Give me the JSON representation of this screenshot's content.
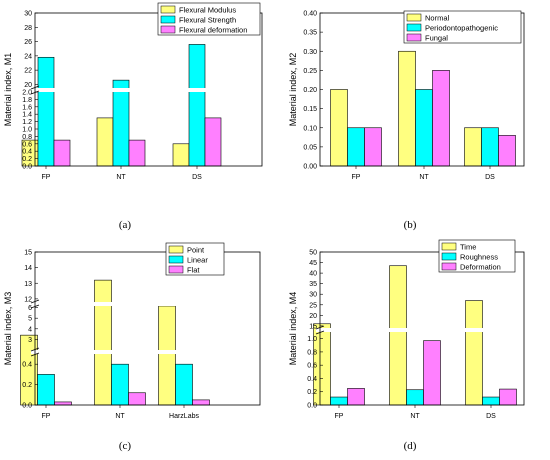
{
  "colors": {
    "yellow": "#ffff80",
    "cyan": "#00ffff",
    "magenta": "#ff80ff"
  },
  "chart_data": [
    {
      "type": "bar",
      "panel_label": "(a)",
      "ylabel": "Material index, M1",
      "categories": [
        "FP",
        "NT",
        "DS"
      ],
      "series": [
        {
          "name": "Flexural Modulus",
          "values": [
            0.7,
            1.3,
            0.6
          ]
        },
        {
          "name": "Flexural Strength",
          "values": [
            23.8,
            20.6,
            25.6
          ]
        },
        {
          "name": "Flexural deformation",
          "values": [
            0.7,
            0.7,
            1.3
          ]
        }
      ],
      "axis_break": {
        "lower_range": [
          0,
          2.0
        ],
        "upper_range": [
          19.5,
          30
        ]
      },
      "lower_ticks": [
        "0.0",
        "0.2",
        "0.4",
        "0.6",
        "0.8",
        "1.0",
        "1.2",
        "1.4",
        "1.6",
        "1.8",
        "2.0"
      ],
      "upper_ticks": [
        "20",
        "22",
        "24",
        "26",
        "28",
        "30"
      ],
      "legend_position": "top-right"
    },
    {
      "type": "bar",
      "panel_label": "(b)",
      "ylabel": "Material index, M2",
      "categories": [
        "FP",
        "NT",
        "DS"
      ],
      "series": [
        {
          "name": "Normal",
          "values": [
            0.2,
            0.3,
            0.1
          ]
        },
        {
          "name": "Periodontopathogenic",
          "values": [
            0.1,
            0.2,
            0.1
          ]
        },
        {
          "name": "Fungal",
          "values": [
            0.1,
            0.25,
            0.08
          ]
        }
      ],
      "ylim": [
        0,
        0.4
      ],
      "ticks": [
        "0.00",
        "0.05",
        "0.10",
        "0.15",
        "0.20",
        "0.25",
        "0.30",
        "0.35",
        "0.40"
      ],
      "legend_position": "top-right"
    },
    {
      "type": "bar",
      "panel_label": "(c)",
      "ylabel": "Material index, M3",
      "categories": [
        "FP",
        "NT",
        "HarzLabs"
      ],
      "series": [
        {
          "name": "Point",
          "values": [
            3.4,
            13.2,
            6.8
          ]
        },
        {
          "name": "Linear",
          "values": [
            0.3,
            0.4,
            0.4
          ]
        },
        {
          "name": "Flat",
          "values": [
            0.03,
            0.12,
            0.05
          ]
        }
      ],
      "axis_break": {
        "lower_range": [
          0,
          0.5
        ],
        "upper_range": [
          2,
          15
        ]
      },
      "lower_ticks": [
        "0.0",
        "0.2",
        "0.4"
      ],
      "upper_ticks": [
        "3",
        "4",
        "5",
        "6",
        "12",
        "13",
        "14",
        "15"
      ],
      "legend_position": "top-right"
    },
    {
      "type": "bar",
      "panel_label": "(d)",
      "ylabel": "Material index, M4",
      "categories": [
        "FP",
        "NT",
        "DS"
      ],
      "series": [
        {
          "name": "Time",
          "values": [
            16,
            43.5,
            27
          ]
        },
        {
          "name": "Roughness",
          "values": [
            0.12,
            0.23,
            0.12
          ]
        },
        {
          "name": "Deformation",
          "values": [
            0.25,
            0.97,
            0.24
          ]
        }
      ],
      "axis_break": {
        "lower_range": [
          0,
          1.1
        ],
        "upper_range": [
          14,
          50
        ]
      },
      "lower_ticks": [
        "0.0",
        "0.2",
        "0.4",
        "0.6",
        "0.8",
        "1.0"
      ],
      "upper_ticks": [
        "15",
        "20",
        "25",
        "30",
        "35",
        "40",
        "45",
        "50"
      ],
      "legend_position": "top-right"
    }
  ]
}
